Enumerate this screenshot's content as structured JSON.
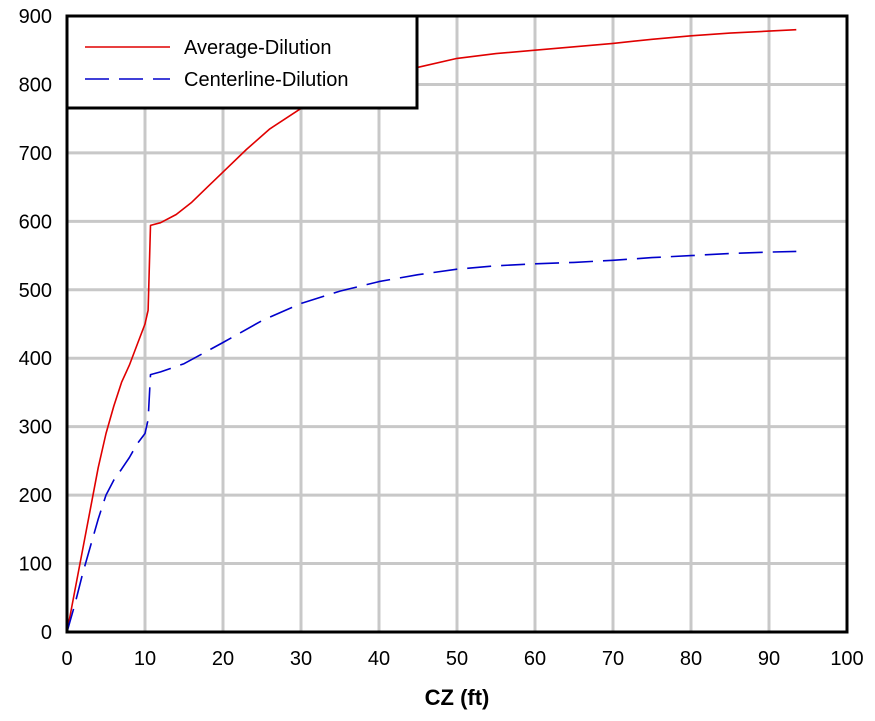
{
  "chart_data": {
    "type": "line",
    "title": "",
    "xlabel": "CZ (ft)",
    "ylabel": "",
    "xlim": [
      0,
      100
    ],
    "ylim": [
      0,
      900
    ],
    "x_ticks": [
      "0",
      "10",
      "20",
      "30",
      "40",
      "50",
      "60",
      "70",
      "80",
      "90",
      "100"
    ],
    "y_ticks": [
      "0",
      "100",
      "200",
      "300",
      "400",
      "500",
      "600",
      "700",
      "800",
      "900"
    ],
    "grid": true,
    "legend_position": "top-left",
    "series": [
      {
        "name": "Average-Dilution",
        "color": "#e00000",
        "style": "solid",
        "x": [
          0,
          1,
          2,
          3,
          4,
          5,
          6,
          7,
          8,
          9,
          10,
          10.4,
          10.7,
          12,
          14,
          16,
          18,
          20,
          23,
          26,
          30,
          35,
          40,
          45,
          50,
          55,
          60,
          65,
          70,
          75,
          80,
          85,
          90,
          93.5
        ],
        "y": [
          0,
          60,
          120,
          180,
          240,
          290,
          330,
          365,
          390,
          420,
          450,
          470,
          594,
          598,
          610,
          628,
          650,
          672,
          705,
          735,
          765,
          790,
          810,
          825,
          838,
          845,
          850,
          855,
          860,
          866,
          871,
          875,
          878,
          880
        ]
      },
      {
        "name": "Centerline-Dilution",
        "color": "#0000cc",
        "style": "dashed",
        "x": [
          0,
          1,
          2,
          3,
          4,
          5,
          6,
          7,
          8,
          9,
          10,
          10.4,
          10.7,
          12,
          15,
          20,
          25,
          30,
          35,
          40,
          45,
          50,
          55,
          60,
          65,
          70,
          75,
          80,
          85,
          90,
          93.5
        ],
        "y": [
          0,
          40,
          85,
          125,
          165,
          200,
          222,
          238,
          255,
          275,
          290,
          310,
          376,
          380,
          392,
          423,
          455,
          480,
          498,
          512,
          522,
          530,
          535,
          538,
          540,
          543,
          547,
          550,
          553,
          555,
          556
        ]
      }
    ]
  }
}
